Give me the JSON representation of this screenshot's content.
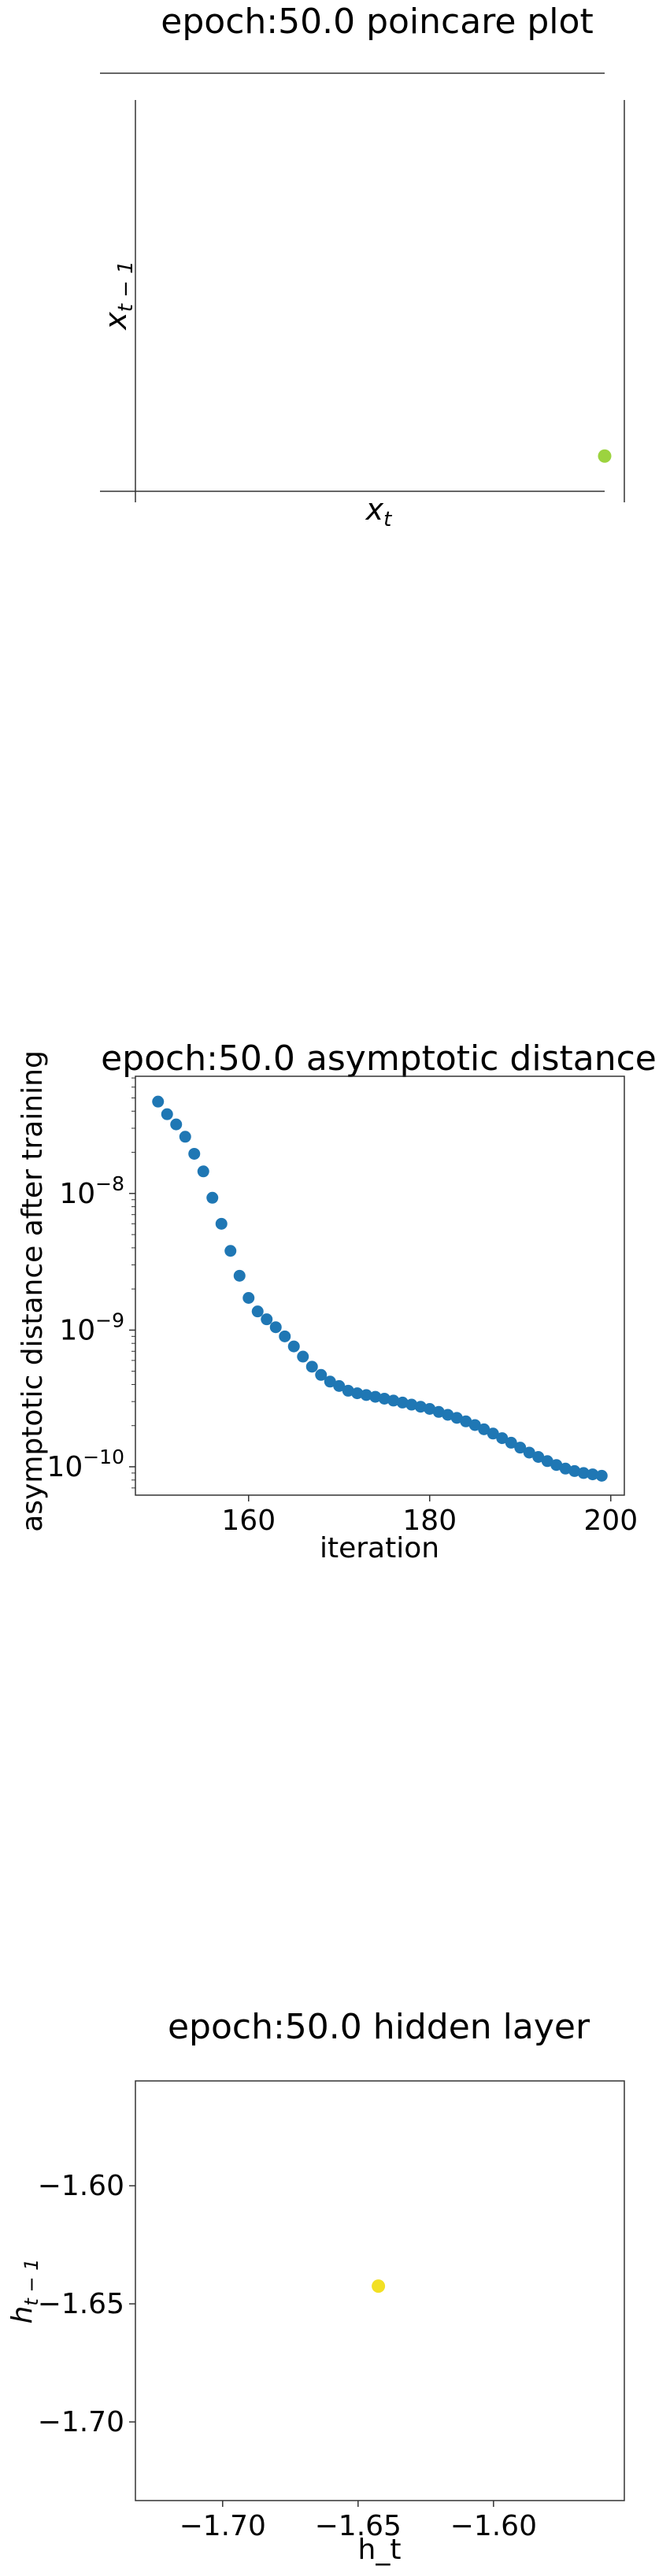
{
  "chart_data": [
    {
      "type": "scatter",
      "title": "epoch:50.0 poincare plot",
      "xlabel": "x_t",
      "ylabel": "x_{t-1}",
      "xlim": [
        0,
        1
      ],
      "ylim": [
        0,
        1
      ],
      "grid": false,
      "axes_style": "spines-only",
      "point_color": "#9cd33f",
      "points": [
        {
          "x": 1.0,
          "y": 0.09
        }
      ]
    },
    {
      "type": "scatter",
      "title": "epoch:50.0 asymptotic distance",
      "xlabel": "iteration",
      "ylabel": "asymptotic distance after training",
      "y_scale": "log",
      "xlim": [
        147.5,
        201.5
      ],
      "ylim": [
        6.2e-11,
        7.2e-08
      ],
      "x_ticks": [
        160,
        180,
        200
      ],
      "y_ticks": [
        {
          "value": 1e-08,
          "label": "10^-8"
        },
        {
          "value": 1e-09,
          "label": "10^-9"
        },
        {
          "value": 1e-10,
          "label": "10^-10"
        }
      ],
      "grid": false,
      "point_color": "#1f77b4",
      "x": [
        150,
        151,
        152,
        153,
        154,
        155,
        156,
        157,
        158,
        159,
        160,
        161,
        162,
        163,
        164,
        165,
        166,
        167,
        168,
        169,
        170,
        171,
        172,
        173,
        174,
        175,
        176,
        177,
        178,
        179,
        180,
        181,
        182,
        183,
        184,
        185,
        186,
        187,
        188,
        189,
        190,
        191,
        192,
        193,
        194,
        195,
        196,
        197,
        198,
        199
      ],
      "y": [
        4.7e-08,
        3.8e-08,
        3.2e-08,
        2.6e-08,
        1.95e-08,
        1.45e-08,
        9.3e-09,
        6e-09,
        3.8e-09,
        2.5e-09,
        1.72e-09,
        1.37e-09,
        1.2e-09,
        1.05e-09,
        9e-10,
        7.6e-10,
        6.4e-10,
        5.4e-10,
        4.7e-10,
        4.2e-10,
        3.9e-10,
        3.6e-10,
        3.45e-10,
        3.35e-10,
        3.25e-10,
        3.15e-10,
        3.05e-10,
        2.95e-10,
        2.85e-10,
        2.75e-10,
        2.65e-10,
        2.52e-10,
        2.4e-10,
        2.28e-10,
        2.15e-10,
        2.02e-10,
        1.88e-10,
        1.75e-10,
        1.62e-10,
        1.5e-10,
        1.38e-10,
        1.27e-10,
        1.18e-10,
        1.1e-10,
        1.03e-10,
        9.7e-11,
        9.3e-11,
        9e-11,
        8.8e-11,
        8.6e-11
      ]
    },
    {
      "type": "scatter",
      "title": "epoch:50.0 hidden layer",
      "xlabel": "h_t",
      "ylabel": "h_{t-1}",
      "xlim": [
        -1.7322,
        -1.5517
      ],
      "ylim": [
        -1.7333,
        -1.5556
      ],
      "x_ticks": [
        {
          "value": -1.7,
          "label": "−1.70"
        },
        {
          "value": -1.65,
          "label": "−1.65"
        },
        {
          "value": -1.6,
          "label": "−1.60"
        }
      ],
      "y_ticks": [
        {
          "value": -1.6,
          "label": "−1.60"
        },
        {
          "value": -1.65,
          "label": "−1.65"
        },
        {
          "value": -1.7,
          "label": "−1.70"
        }
      ],
      "grid": false,
      "point_color": "#f2e024",
      "points": [
        {
          "x": -1.6425,
          "y": -1.6425
        }
      ]
    }
  ]
}
